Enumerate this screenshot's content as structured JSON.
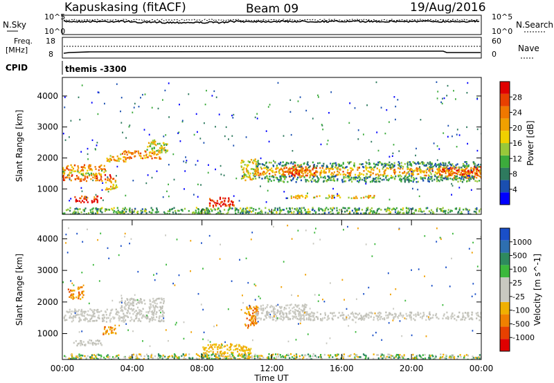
{
  "header": {
    "station": "Kapuskasing (fitACF)",
    "beam": "Beam 09",
    "date": "19/Aug/2016"
  },
  "top_panel": {
    "left_label": "N.Sky",
    "left_ticks": [
      "10^5",
      "10^0"
    ],
    "right_label": "N.Search",
    "right_ticks": [
      "10^5",
      "10^0"
    ]
  },
  "freq_panel": {
    "left_label_1": "Freq.",
    "left_label_2": "[MHz]",
    "left_ticks": [
      "18",
      "8"
    ],
    "right_label": "Nave",
    "right_ticks": [
      "60",
      "0"
    ]
  },
  "cpid": {
    "label": "CPID",
    "value": "themis -3300"
  },
  "chart_data": [
    {
      "type": "heatmap",
      "name": "power",
      "ylabel": "Slant Range [km]",
      "yticks": [
        "4000",
        "3000",
        "2000",
        "1000"
      ],
      "ylim": [
        180,
        4600
      ],
      "xlim": [
        0,
        24
      ],
      "colorbar_label": "Power [dB]",
      "colorbar_ticks": [
        "28",
        "24",
        "20",
        "16",
        "12",
        "8",
        "4"
      ],
      "colorbar": [
        "#0000ff",
        "#1a4fb0",
        "#2e7a5e",
        "#3cab3c",
        "#98c83a",
        "#f0d000",
        "#f0a000",
        "#f07800",
        "#e84000",
        "#e00000"
      ],
      "regions": [
        {
          "t0": 0.0,
          "t1": 2.9,
          "r0": 1280,
          "r1": 1480,
          "level": 0.78
        },
        {
          "t0": 0.0,
          "t1": 2.6,
          "r0": 1480,
          "r1": 1620,
          "level": 0.55
        },
        {
          "t0": 0.0,
          "t1": 2.5,
          "r0": 1620,
          "r1": 1800,
          "level": 0.7
        },
        {
          "t0": 0.7,
          "t1": 2.0,
          "r0": 570,
          "r1": 720,
          "level": 0.97
        },
        {
          "t0": 0.5,
          "t1": 2.3,
          "r0": 720,
          "r1": 800,
          "level": 0.8
        },
        {
          "t0": 2.5,
          "t1": 3.7,
          "r0": 1900,
          "r1": 2150,
          "level": 0.62
        },
        {
          "t0": 3.4,
          "t1": 5.6,
          "r0": 2000,
          "r1": 2250,
          "level": 0.72
        },
        {
          "t0": 4.8,
          "t1": 6.0,
          "r0": 2200,
          "r1": 2600,
          "level": 0.5
        },
        {
          "t0": 2.4,
          "t1": 3.1,
          "r0": 1000,
          "r1": 1300,
          "level": 0.6
        },
        {
          "t0": 8.4,
          "t1": 9.8,
          "r0": 440,
          "r1": 760,
          "level": 0.88
        },
        {
          "t0": 10.2,
          "t1": 11.2,
          "r0": 1300,
          "r1": 2000,
          "level": 0.55
        },
        {
          "t0": 11.0,
          "t1": 24.0,
          "r0": 1450,
          "r1": 1720,
          "level": 0.66
        },
        {
          "t0": 12.6,
          "t1": 14.6,
          "r0": 1420,
          "r1": 1800,
          "level": 0.78
        },
        {
          "t0": 21.5,
          "t1": 24.0,
          "r0": 1350,
          "r1": 1750,
          "level": 0.78
        },
        {
          "t0": 11.0,
          "t1": 24.0,
          "r0": 1720,
          "r1": 1900,
          "level": 0.3
        },
        {
          "t0": 11.0,
          "t1": 24.0,
          "r0": 1250,
          "r1": 1450,
          "level": 0.3
        },
        {
          "t0": 13.0,
          "t1": 18.0,
          "r0": 720,
          "r1": 820,
          "level": 0.6
        },
        {
          "t0": 0.0,
          "t1": 24.0,
          "r0": 200,
          "r1": 420,
          "level": 0.35
        }
      ]
    },
    {
      "type": "heatmap",
      "name": "velocity",
      "ylabel": "Slant Range [km]",
      "yticks": [
        "4000",
        "3000",
        "2000",
        "1000"
      ],
      "ylim": [
        180,
        4600
      ],
      "xlim": [
        0,
        24
      ],
      "xlabel": "Time UT",
      "xticks": [
        "00:00",
        "04:00",
        "08:00",
        "12:00",
        "16:00",
        "20:00",
        "00:00"
      ],
      "colorbar_label": "Velocity [m s^-1]",
      "colorbar_ticks": [
        "1000",
        "500",
        "100",
        "25",
        "-25",
        "-100",
        "-500",
        "-1000"
      ],
      "colorbar": [
        "#1a4fc8",
        "#2e6fb0",
        "#2e8a5e",
        "#3cb83c",
        "#c8c8c0",
        "#c8c8c0",
        "#f0b000",
        "#f08000",
        "#e84000",
        "#e00000"
      ],
      "regions": [
        {
          "t0": 0.0,
          "t1": 5.8,
          "r0": 1400,
          "r1": 1800,
          "vel": "gray"
        },
        {
          "t0": 3.2,
          "t1": 5.8,
          "r0": 1800,
          "r1": 2150,
          "vel": "gray"
        },
        {
          "t0": 0.5,
          "t1": 2.3,
          "r0": 650,
          "r1": 820,
          "vel": "gray"
        },
        {
          "t0": 0.3,
          "t1": 1.2,
          "r0": 2100,
          "r1": 2500,
          "vel": "orange"
        },
        {
          "t0": 2.2,
          "t1": 3.1,
          "r0": 1000,
          "r1": 1250,
          "vel": "orange"
        },
        {
          "t0": 8.0,
          "t1": 10.8,
          "r0": 200,
          "r1": 700,
          "vel": "amber"
        },
        {
          "t0": 10.4,
          "t1": 11.2,
          "r0": 1200,
          "r1": 1900,
          "vel": "orange"
        },
        {
          "t0": 11.0,
          "t1": 24.0,
          "r0": 1450,
          "r1": 1700,
          "vel": "gray"
        },
        {
          "t0": 11.2,
          "t1": 14.0,
          "r0": 1700,
          "r1": 1950,
          "vel": "gray"
        },
        {
          "t0": 0.0,
          "t1": 24.0,
          "r0": 200,
          "r1": 380,
          "vel": "green"
        }
      ]
    }
  ]
}
